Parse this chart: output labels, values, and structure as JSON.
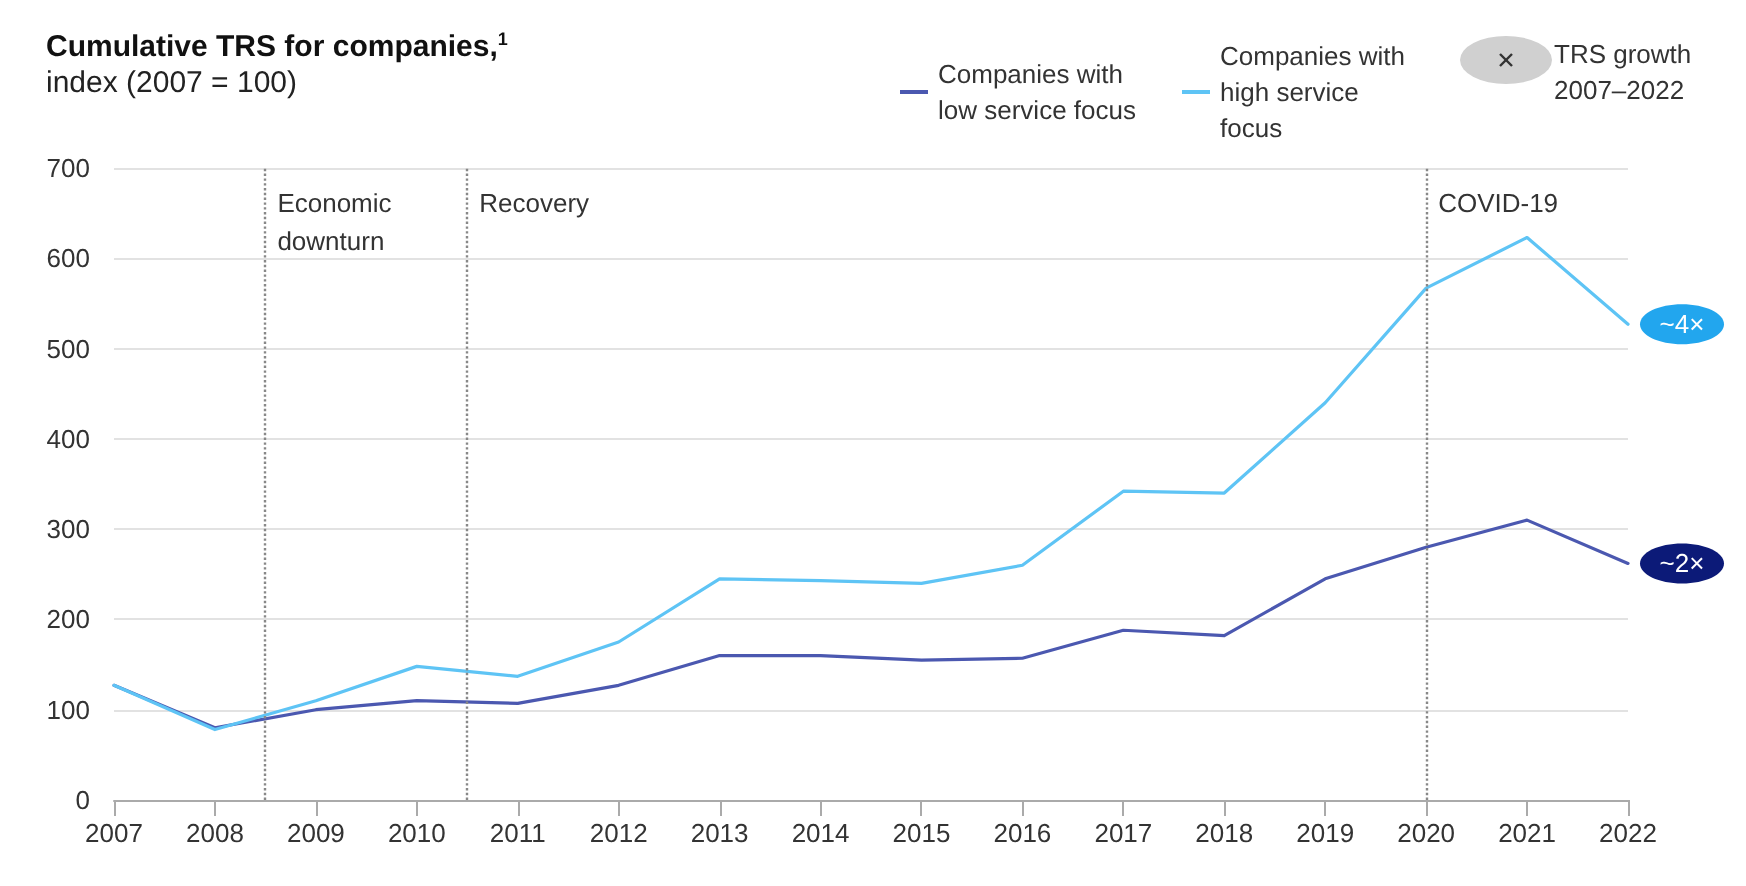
{
  "chart_data": {
    "type": "line",
    "title": "Cumulative TRS for companies,$^{1}$",
    "subtitle": "index (2007 = 100)",
    "x": [
      2007,
      2008,
      2009,
      2010,
      2011,
      2012,
      2013,
      2014,
      2015,
      2016,
      2017,
      2018,
      2019,
      2020,
      2021,
      2022
    ],
    "series": [
      {
        "name": "Companies with low service focus",
        "color": "#4b58b0",
        "values": [
          127,
          80,
          100,
          110,
          107,
          127,
          160,
          160,
          155,
          157,
          188,
          182,
          245,
          280,
          310,
          262
        ]
      },
      {
        "name": "Companies with high service focus",
        "color": "#5ec4f5",
        "values": [
          127,
          78,
          110,
          148,
          137,
          175,
          245,
          243,
          240,
          260,
          342,
          340,
          440,
          567,
          623,
          527
        ]
      }
    ],
    "xlim": [
      2007,
      2022
    ],
    "xticks": [
      2007,
      2008,
      2009,
      2010,
      2011,
      2012,
      2013,
      2014,
      2015,
      2016,
      2017,
      2018,
      2019,
      2020,
      2021,
      2022
    ],
    "ylim": [
      0,
      700
    ],
    "yticks": [
      0,
      100,
      200,
      300,
      400,
      500,
      600,
      700
    ],
    "ref_lines": [
      {
        "axis": "x",
        "value": 2008.5,
        "label": "Economic downturn",
        "color": "#888888",
        "line_style": "dotted"
      },
      {
        "axis": "x",
        "value": 2010.5,
        "label": "Recovery",
        "color": "#888888",
        "line_style": "dotted"
      },
      {
        "axis": "x",
        "value": 2020,
        "label": "COVID-19",
        "color": "#888888",
        "line_style": "dotted"
      }
    ],
    "annotations": [
      {
        "text": "~4×",
        "x": 2022,
        "y": 527
      },
      {
        "text": "~2×",
        "x": 2022,
        "y": 262
      },
      "TRS growth 2007–2022"
    ],
    "grid": "y",
    "legend": "top right",
    "marker": "none",
    "line_style": "solid"
  }
}
